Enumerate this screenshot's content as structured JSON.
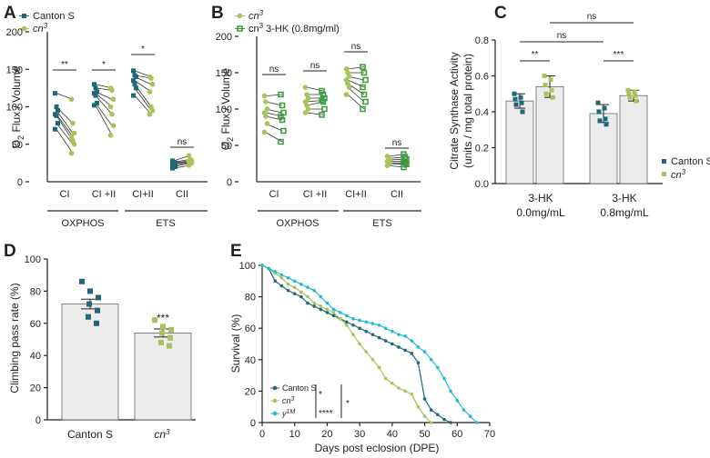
{
  "colors": {
    "canton": "#1e6878",
    "cn3": "#a8c25c",
    "cn3hk": "#3a9a3a",
    "y": "#25b9d7",
    "bar": "#ececec"
  },
  "chart_data": [
    {
      "panel": "A",
      "type": "scatter",
      "ylabel_main": "O",
      "ylabel_sub": "2",
      "ylabel_rest": " Flux / Volume",
      "ylim": [
        0,
        200
      ],
      "yticks": [
        "0",
        "50",
        "100",
        "150",
        "200"
      ],
      "categories": [
        "CI",
        "CI +II",
        "CI+II",
        "CII"
      ],
      "groups": [
        {
          "label": "OXPHOS"
        },
        {
          "label": "ETS"
        }
      ],
      "legend": [
        {
          "name": "Canton S"
        },
        {
          "name_main": "cn",
          "name_sup": "3"
        }
      ],
      "significance": [
        "**",
        "*",
        "*",
        "ns"
      ],
      "series": [
        {
          "name": "Canton S",
          "values": [
            [
              118,
              100,
              95,
              90,
              88,
              78,
              70
            ],
            [
              130,
              125,
              120,
              118,
              115,
              105,
              102
            ],
            [
              148,
              142,
              140,
              135,
              130,
              125,
              115
            ],
            [
              28,
              26,
              25,
              24,
              22,
              20,
              18
            ]
          ]
        },
        {
          "name": "cn3",
          "values": [
            [
              110,
              78,
              65,
              60,
              55,
              50,
              38
            ],
            [
              125,
              122,
              110,
              100,
              90,
              75,
              62
            ],
            [
              140,
              138,
              130,
              120,
              100,
              95,
              90
            ],
            [
              35,
              30,
              28,
              27,
              26,
              25,
              22
            ]
          ]
        }
      ]
    },
    {
      "panel": "B",
      "type": "scatter",
      "ylabel_main": "O",
      "ylabel_sub": "2",
      "ylabel_rest": " Flux / Volume",
      "ylim": [
        0,
        200
      ],
      "yticks": [
        "0",
        "50",
        "100",
        "150",
        "200"
      ],
      "categories": [
        "CI",
        "CI +II",
        "CI+II",
        "CII"
      ],
      "groups": [
        {
          "label": "OXPHOS"
        },
        {
          "label": "ETS"
        }
      ],
      "legend": [
        {
          "name_main": "cn",
          "name_sup": "3",
          "name_rest": ""
        },
        {
          "name_main": "cn",
          "name_sup": "3",
          "name_rest": " 3-HK (0.8mg/ml)"
        }
      ],
      "significance": [
        "ns",
        "ns",
        "ns",
        "ns"
      ],
      "series": [
        {
          "name": "cn3",
          "values": [
            [
              118,
              110,
              100,
              95,
              90,
              80,
              68
            ],
            [
              130,
              120,
              115,
              110,
              105,
              100,
              95
            ],
            [
              155,
              150,
              145,
              140,
              135,
              130,
              120
            ],
            [
              35,
              32,
              30,
              28,
              26,
              25,
              22
            ]
          ]
        },
        {
          "name": "cn3 3-HK",
          "values": [
            [
              120,
              105,
              95,
              90,
              85,
              70,
              55
            ],
            [
              125,
              120,
              115,
              112,
              110,
              100,
              92
            ],
            [
              158,
              150,
              140,
              130,
              120,
              110,
              100
            ],
            [
              38,
              34,
              31,
              28,
              26,
              24,
              20
            ]
          ]
        }
      ]
    },
    {
      "panel": "C",
      "type": "bar",
      "ylabel": "Citrate Synthase Activity",
      "ylabel2": "(units / mg total protein)",
      "ylim": [
        0,
        0.8
      ],
      "yticks": [
        "0.0",
        "0.2",
        "0.4",
        "0.6",
        "0.8"
      ],
      "categories": [
        {
          "line1": "3-HK",
          "line2": "0.0mg/mL"
        },
        {
          "line1": "3-HK",
          "line2": "0.8mg/mL"
        }
      ],
      "legend": [
        {
          "name": "Canton S"
        },
        {
          "name_main": "cn",
          "name_sup": "3"
        }
      ],
      "series": [
        {
          "name": "Canton S",
          "values": [
            0.46,
            0.39
          ],
          "sem": [
            0.04,
            0.05
          ],
          "points": [
            [
              0.5,
              0.48,
              0.47,
              0.45,
              0.44,
              0.4
            ],
            [
              0.45,
              0.42,
              0.4,
              0.36,
              0.35,
              0.33
            ]
          ]
        },
        {
          "name": "cn3",
          "values": [
            0.54,
            0.49
          ],
          "sem": [
            0.06,
            0.03
          ],
          "points": [
            [
              0.6,
              0.58,
              0.55,
              0.52,
              0.5,
              0.48
            ],
            [
              0.52,
              0.51,
              0.5,
              0.49,
              0.48,
              0.46
            ]
          ]
        }
      ],
      "significance": [
        {
          "label": "**"
        },
        {
          "label": "***"
        },
        {
          "label": "ns"
        },
        {
          "label": "ns"
        }
      ]
    },
    {
      "panel": "D",
      "type": "bar",
      "ylabel": "Climbing pass rate (%)",
      "ylim": [
        0,
        100
      ],
      "yticks": [
        "0",
        "20",
        "40",
        "60",
        "80",
        "100"
      ],
      "categories": [
        {
          "name": "Canton S"
        },
        {
          "name_main": "cn",
          "name_sup": "3"
        }
      ],
      "values": [
        72,
        54
      ],
      "sem": [
        3,
        2.5
      ],
      "points": [
        [
          86,
          80,
          76,
          72,
          68,
          64,
          60
        ],
        [
          62,
          58,
          56,
          54,
          51,
          48,
          46
        ]
      ],
      "significance": "***"
    },
    {
      "panel": "E",
      "type": "line",
      "xlabel": "Days post eclosion (DPE)",
      "ylabel": "Survival (%)",
      "xlim": [
        0,
        70
      ],
      "ylim": [
        0,
        100
      ],
      "xticks": [
        "0",
        "10",
        "20",
        "30",
        "40",
        "50",
        "60",
        "70"
      ],
      "yticks": [
        "0",
        "20",
        "40",
        "60",
        "80",
        "100"
      ],
      "legend": [
        {
          "name": "Canton S"
        },
        {
          "name_main": "cn",
          "name_sup": "3"
        },
        {
          "name_main": "y",
          "name_sup": "1M"
        }
      ],
      "significance": [
        "*",
        "****",
        "*"
      ],
      "series": [
        {
          "name": "Canton S",
          "x": [
            0,
            2,
            4,
            6,
            8,
            10,
            12,
            14,
            16,
            18,
            20,
            22,
            24,
            26,
            28,
            30,
            32,
            34,
            36,
            38,
            40,
            42,
            44,
            46,
            48,
            50,
            52,
            54,
            56,
            58
          ],
          "y": [
            100,
            98,
            90,
            87,
            84,
            82,
            80,
            76,
            74,
            72,
            70,
            68,
            66,
            64,
            62,
            60,
            58,
            56,
            54,
            52,
            50,
            48,
            46,
            44,
            38,
            15,
            8,
            5,
            2,
            0
          ]
        },
        {
          "name": "cn3",
          "x": [
            0,
            2,
            4,
            6,
            8,
            10,
            12,
            14,
            16,
            18,
            20,
            22,
            24,
            26,
            28,
            30,
            32,
            34,
            36,
            38,
            40,
            42,
            44,
            46,
            48,
            50,
            52
          ],
          "y": [
            100,
            98,
            95,
            92,
            88,
            86,
            83,
            80,
            76,
            74,
            72,
            70,
            66,
            62,
            56,
            50,
            45,
            40,
            35,
            28,
            25,
            22,
            20,
            18,
            10,
            4,
            0
          ]
        },
        {
          "name": "y1M",
          "x": [
            0,
            2,
            4,
            6,
            8,
            10,
            12,
            14,
            16,
            18,
            20,
            22,
            24,
            26,
            28,
            30,
            32,
            34,
            36,
            38,
            40,
            42,
            44,
            46,
            48,
            50,
            52,
            54,
            56,
            58,
            60,
            62,
            64,
            66
          ],
          "y": [
            100,
            98,
            96,
            94,
            92,
            90,
            88,
            86,
            84,
            80,
            76,
            72,
            70,
            68,
            66,
            65,
            64,
            63,
            62,
            60,
            58,
            56,
            55,
            52,
            48,
            45,
            40,
            35,
            28,
            20,
            14,
            8,
            4,
            0
          ]
        }
      ]
    }
  ]
}
